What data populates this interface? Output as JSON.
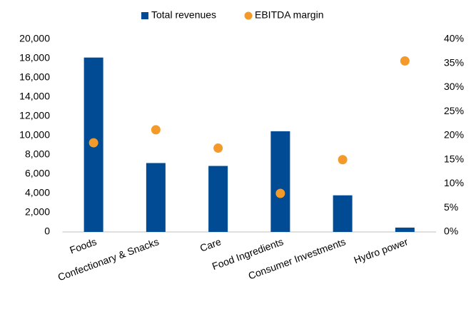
{
  "chart_data": {
    "type": "bar",
    "categories": [
      "Foods",
      "Confectionary & Snacks",
      "Care",
      "Food Ingredients",
      "Consumer Investments",
      "Hydro power"
    ],
    "series": [
      {
        "name": "Total revenues",
        "type": "bar",
        "color": "#004b93",
        "values": [
          18100,
          7150,
          6850,
          10450,
          3800,
          450
        ]
      },
      {
        "name": "EBITDA margin",
        "type": "scatter",
        "axis": "y2",
        "color": "#f39a2b",
        "values": [
          18.5,
          21.2,
          17.4,
          8,
          15,
          35.5
        ]
      }
    ],
    "ylim": [
      0,
      20000
    ],
    "yticks": [
      0,
      {
        "value": 2000,
        "label": "2,000"
      },
      {
        "value": 4000,
        "label": "4,000"
      },
      {
        "value": 6000,
        "label": "6,000"
      },
      {
        "value": 8000,
        "label": "8,000"
      },
      {
        "value": 10000,
        "label": "10,000"
      },
      {
        "value": 12000,
        "label": "12,000"
      },
      {
        "value": 14000,
        "label": "14,000"
      },
      {
        "value": 16000,
        "label": "16,000"
      },
      {
        "value": 18000,
        "label": "18,000"
      },
      {
        "value": 20000,
        "label": "20,000"
      }
    ],
    "y2lim": [
      0,
      40
    ],
    "y2ticks": [
      {
        "value": 0,
        "label": "0%"
      },
      {
        "value": 5,
        "label": "5%"
      },
      {
        "value": 10,
        "label": "10%"
      },
      {
        "value": 15,
        "label": "15%"
      },
      {
        "value": 20,
        "label": "20%"
      },
      {
        "value": 25,
        "label": "25%"
      },
      {
        "value": 30,
        "label": "30%"
      },
      {
        "value": 35,
        "label": "35%"
      },
      {
        "value": 40,
        "label": "40%"
      }
    ],
    "legend": "top",
    "grid": false
  }
}
